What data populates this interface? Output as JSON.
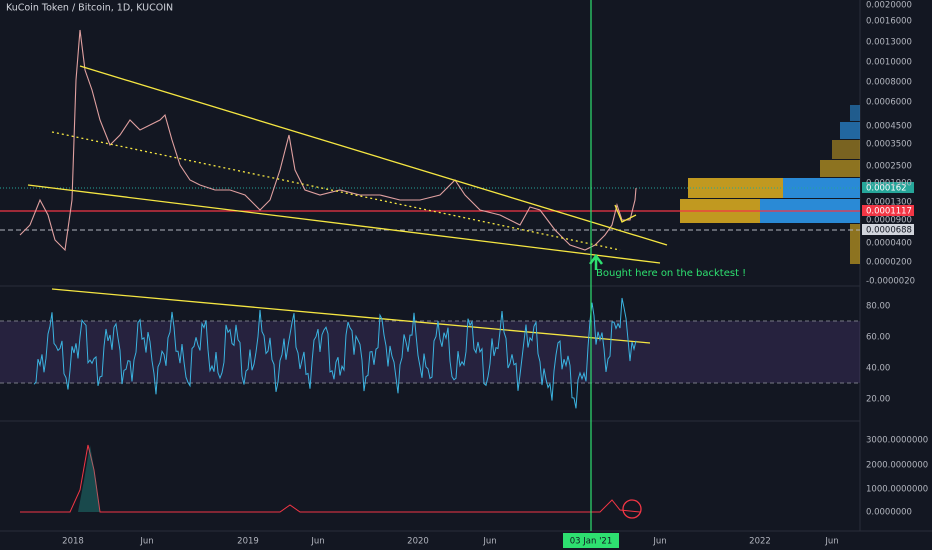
{
  "header": {
    "title": "KuCoin Token / Bitcoin, 1D, KUCOIN"
  },
  "price_axis": {
    "labels": [
      "0.0020000",
      "0.0016000",
      "0.0013000",
      "0.0010000",
      "0.0008000",
      "0.0006000",
      "0.0004500",
      "0.0003500",
      "0.0002500",
      "0.0001900",
      "0.0001300",
      "0.0000900",
      "0.0000400",
      "0.0000200",
      "-0.0000020"
    ],
    "last_price": "0.000162",
    "red_level": "0.0001117",
    "dashed_level": "0.0000688"
  },
  "rsi_axis": {
    "labels": [
      "80.00",
      "60.00",
      "40.00",
      "20.00"
    ]
  },
  "volume_axis": {
    "labels": [
      "3000.0000000",
      "2000.0000000",
      "1000.0000000",
      "0.0000000"
    ]
  },
  "time_axis": {
    "labels": [
      "2018",
      "Jun",
      "2019",
      "Jun",
      "2020",
      "Jun",
      "Jun",
      "2022",
      "Jun"
    ],
    "cursor": "03 Jan '21"
  },
  "annotation": "Bought here on the backtest !"
}
